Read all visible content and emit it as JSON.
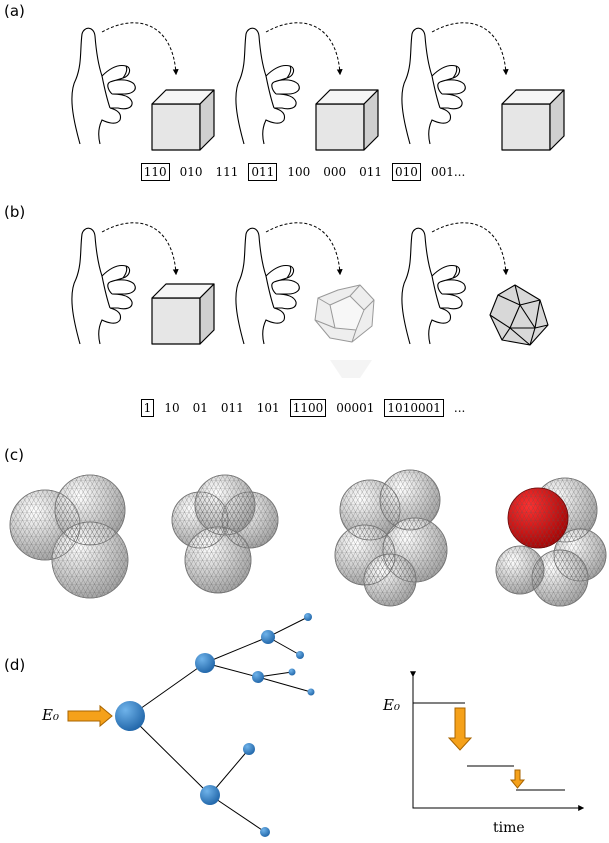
{
  "panels": [
    {
      "label": "(a)",
      "bits": [
        {
          "text": "110",
          "boxed": true
        },
        {
          "text": "010",
          "boxed": false
        },
        {
          "text": "111",
          "boxed": false
        },
        {
          "text": "011",
          "boxed": true
        },
        {
          "text": "100",
          "boxed": false
        },
        {
          "text": "000",
          "boxed": false
        },
        {
          "text": "011",
          "boxed": false
        },
        {
          "text": "010",
          "boxed": true
        },
        {
          "text": "001...",
          "boxed": false
        }
      ]
    },
    {
      "label": "(b)",
      "bits": [
        {
          "text": "1",
          "boxed": true
        },
        {
          "text": "10",
          "boxed": false
        },
        {
          "text": "01",
          "boxed": false
        },
        {
          "text": "011",
          "boxed": false
        },
        {
          "text": "101",
          "boxed": false
        },
        {
          "text": "1100",
          "boxed": true
        },
        {
          "text": "00001",
          "boxed": false
        },
        {
          "text": "1010001",
          "boxed": true
        },
        {
          "text": "...",
          "boxed": false
        }
      ]
    },
    {
      "label": "(c)"
    },
    {
      "label": "(d)",
      "source_label": "E₀",
      "axis_label": "E₀",
      "x_label": "time"
    }
  ]
}
